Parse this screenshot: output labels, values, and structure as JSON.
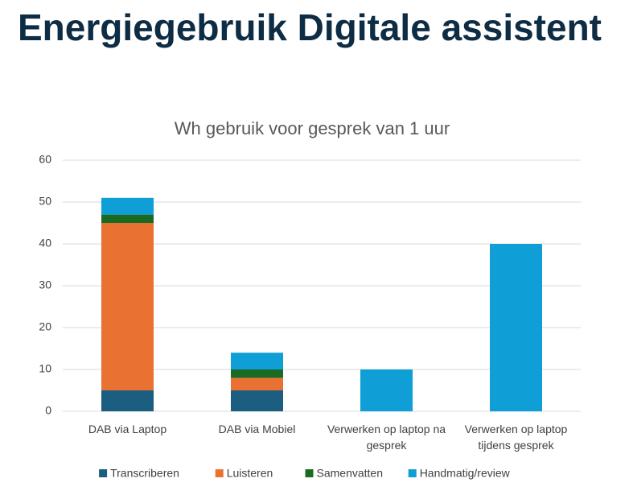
{
  "heading": "Energiegebruik Digitale assistent",
  "chart_data": {
    "type": "stacked-bar",
    "title": "Wh gebruik voor gesprek van 1 uur",
    "categories": [
      "DAB via Laptop",
      "DAB via Mobiel",
      "Verwerken op laptop na gesprek",
      "Verwerken op laptop tijdens gesprek"
    ],
    "series": [
      {
        "name": "Transcriberen",
        "color": "#1b5e80",
        "values": [
          5,
          5,
          0,
          0
        ]
      },
      {
        "name": "Luisteren",
        "color": "#e97132",
        "values": [
          40,
          3,
          0,
          0
        ]
      },
      {
        "name": "Samenvatten",
        "color": "#196b24",
        "values": [
          2,
          2,
          0,
          0
        ]
      },
      {
        "name": "Handmatig/review",
        "color": "#0f9ed5",
        "values": [
          4,
          4,
          10,
          40
        ]
      }
    ],
    "ylim": [
      0,
      60
    ],
    "yticks": [
      0,
      10,
      20,
      30,
      40,
      50,
      60
    ],
    "grid": true,
    "legend": "bottom"
  }
}
